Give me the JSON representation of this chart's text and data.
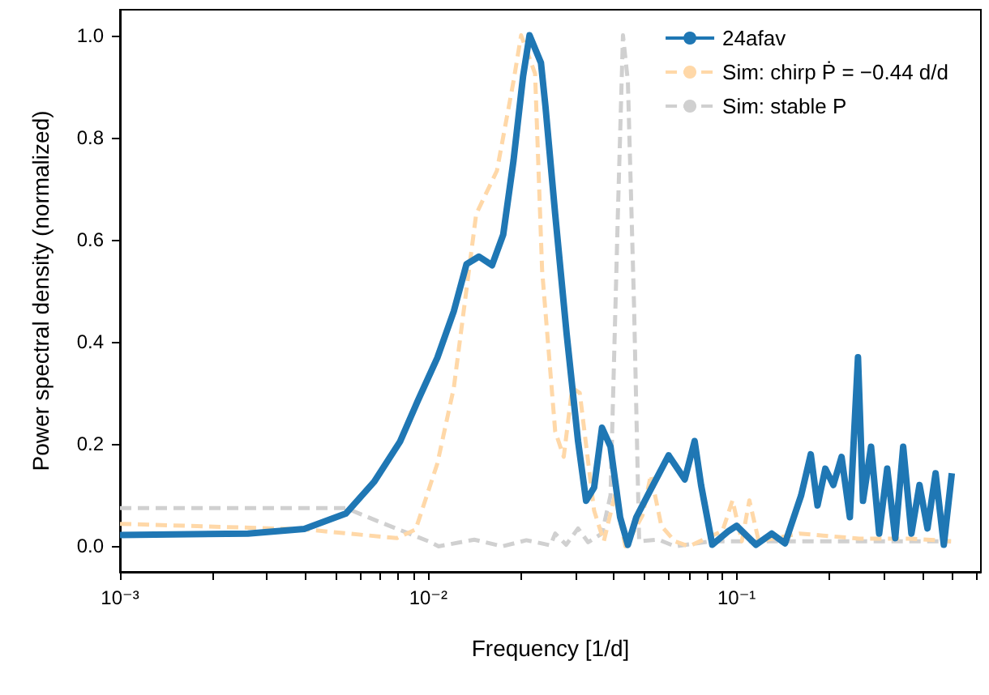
{
  "chart_data": {
    "type": "line",
    "xlabel": "Frequency [1/d]",
    "ylabel": "Power spectral density (normalized)",
    "log": "x",
    "grid": false,
    "legend": "top right",
    "marker": "none",
    "xlim": [
      0.001,
      0.62
    ],
    "ylim": [
      -0.05,
      1.05
    ],
    "xticks": [
      {
        "value": 0.001,
        "label": "10⁻³"
      },
      {
        "value": 0.002,
        "label": null
      },
      {
        "value": 0.003,
        "label": null
      },
      {
        "value": 0.004,
        "label": null
      },
      {
        "value": 0.005,
        "label": null
      },
      {
        "value": 0.006,
        "label": null
      },
      {
        "value": 0.007,
        "label": null
      },
      {
        "value": 0.008,
        "label": null
      },
      {
        "value": 0.009,
        "label": null
      },
      {
        "value": 0.01,
        "label": "10⁻²"
      },
      {
        "value": 0.02,
        "label": null
      },
      {
        "value": 0.03,
        "label": null
      },
      {
        "value": 0.04,
        "label": null
      },
      {
        "value": 0.05,
        "label": null
      },
      {
        "value": 0.06,
        "label": null
      },
      {
        "value": 0.07,
        "label": null
      },
      {
        "value": 0.08,
        "label": null
      },
      {
        "value": 0.09,
        "label": null
      },
      {
        "value": 0.1,
        "label": "10⁻¹"
      },
      {
        "value": 0.2,
        "label": null
      },
      {
        "value": 0.3,
        "label": null
      },
      {
        "value": 0.4,
        "label": null
      },
      {
        "value": 0.5,
        "label": null
      },
      {
        "value": 0.6,
        "label": null
      }
    ],
    "yticks": [
      {
        "value": 0,
        "label": "0.0"
      },
      {
        "value": 0.2,
        "label": "0.2"
      },
      {
        "value": 0.4,
        "label": "0.4"
      },
      {
        "value": 0.6,
        "label": "0.6"
      },
      {
        "value": 0.8,
        "label": "0.8"
      },
      {
        "value": 1,
        "label": "1.0"
      }
    ],
    "series": [
      {
        "name": "Sim: stable P",
        "color": "#d0d0d0",
        "line_style": "dashed",
        "x": [
          0.001,
          0.0054,
          0.0068,
          0.01,
          0.0108,
          0.0141,
          0.0174,
          0.0208,
          0.0249,
          0.0258,
          0.028,
          0.0306,
          0.033,
          0.0366,
          0.039,
          0.0412,
          0.0428,
          0.0444,
          0.0465,
          0.0483,
          0.0558,
          0.0631,
          0.083,
          0.12,
          0.25,
          0.496
        ],
        "values": [
          0.075,
          0.075,
          0.05,
          0.01,
          0.0,
          0.013,
          0.0,
          0.012,
          0.002,
          0.025,
          0.003,
          0.035,
          0.008,
          0.025,
          0.1,
          0.65,
          1.0,
          0.91,
          0.47,
          0.01,
          0.013,
          0.0,
          0.01,
          0.01,
          0.01,
          0.01
        ]
      },
      {
        "name": "Sim: chirp Ṗ = −0.44 d/d",
        "color": "#ffd8a8",
        "line_style": "dashed",
        "x": [
          0.001,
          0.004,
          0.0079,
          0.0091,
          0.0107,
          0.0121,
          0.0143,
          0.0167,
          0.0189,
          0.02,
          0.0222,
          0.0234,
          0.0258,
          0.0275,
          0.0293,
          0.031,
          0.0345,
          0.0371,
          0.0403,
          0.0436,
          0.0495,
          0.0527,
          0.057,
          0.063,
          0.07,
          0.09,
          0.097,
          0.104,
          0.11,
          0.118,
          0.16,
          0.25,
          0.37,
          0.496
        ],
        "values": [
          0.044,
          0.033,
          0.016,
          0.033,
          0.162,
          0.31,
          0.65,
          0.735,
          0.91,
          1.0,
          0.925,
          0.54,
          0.225,
          0.175,
          0.31,
          0.3,
          0.07,
          0.01,
          0.1,
          0.0,
          0.06,
          0.14,
          0.04,
          0.01,
          0.0,
          0.03,
          0.09,
          0.01,
          0.09,
          0.01,
          0.025,
          0.015,
          0.015,
          0.01
        ]
      },
      {
        "name": "24afav",
        "color": "#1f77b4",
        "line_style": "solid",
        "x": [
          0.001,
          0.0026,
          0.00396,
          0.0054,
          0.00667,
          0.0081,
          0.00925,
          0.0107,
          0.0121,
          0.0133,
          0.0146,
          0.0161,
          0.0175,
          0.0189,
          0.0203,
          0.0213,
          0.0232,
          0.024,
          0.0258,
          0.0281,
          0.0306,
          0.0325,
          0.0345,
          0.0366,
          0.039,
          0.0419,
          0.0444,
          0.0473,
          0.0515,
          0.0602,
          0.0679,
          0.0731,
          0.0767,
          0.0834,
          0.0942,
          0.1,
          0.1156,
          0.13,
          0.1436,
          0.162,
          0.174,
          0.183,
          0.194,
          0.206,
          0.219,
          0.233,
          0.2476,
          0.257,
          0.273,
          0.29,
          0.308,
          0.327,
          0.347,
          0.369,
          0.392,
          0.416,
          0.442,
          0.47,
          0.499
        ],
        "values": [
          0.022,
          0.025,
          0.034,
          0.064,
          0.126,
          0.205,
          0.285,
          0.369,
          0.46,
          0.552,
          0.567,
          0.55,
          0.61,
          0.755,
          0.92,
          1.0,
          0.946,
          0.86,
          0.65,
          0.416,
          0.206,
          0.089,
          0.115,
          0.232,
          0.195,
          0.057,
          0.003,
          0.057,
          0.1,
          0.178,
          0.131,
          0.206,
          0.12,
          0.003,
          0.03,
          0.04,
          0.003,
          0.025,
          0.006,
          0.1,
          0.18,
          0.08,
          0.152,
          0.12,
          0.175,
          0.057,
          0.37,
          0.089,
          0.195,
          0.025,
          0.152,
          0.016,
          0.195,
          0.025,
          0.12,
          0.035,
          0.143,
          0.003,
          0.143
        ]
      }
    ]
  }
}
